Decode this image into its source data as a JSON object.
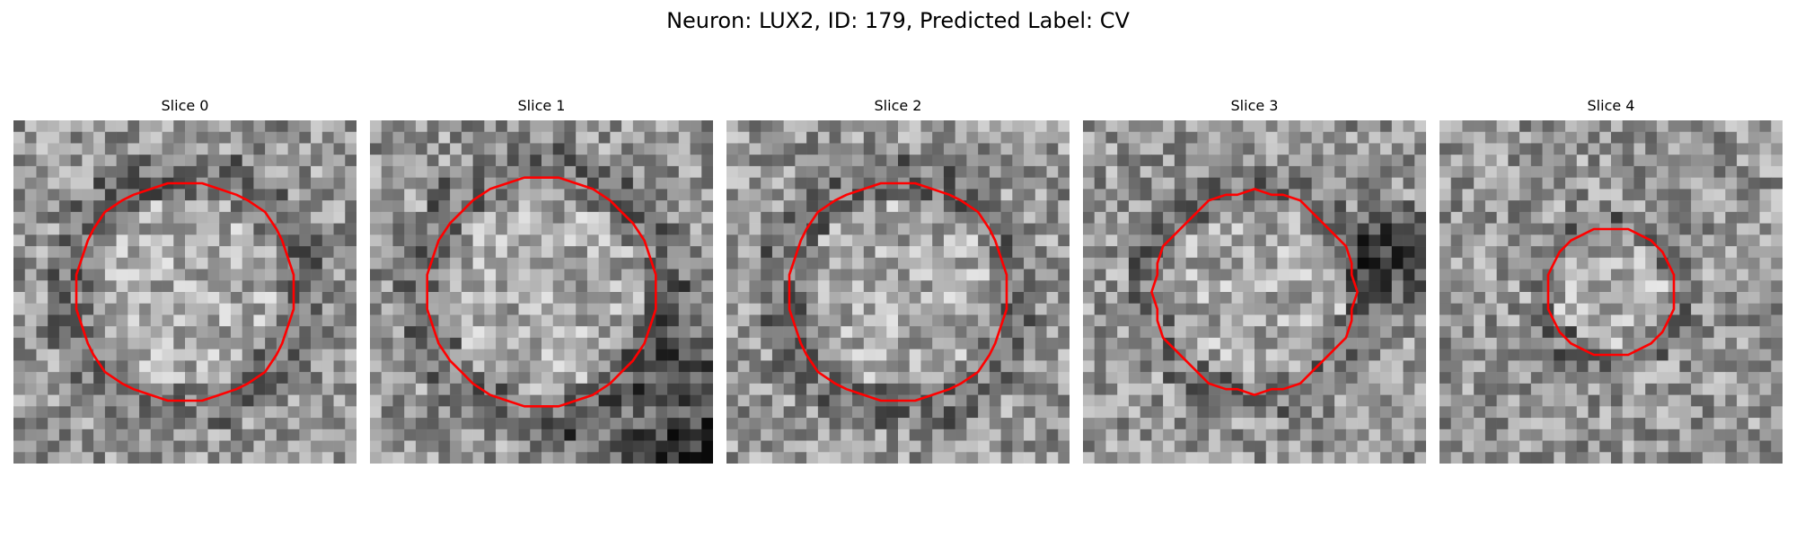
{
  "figure": {
    "title": "Neuron: LUX2, ID: 179, Predicted Label: CV"
  },
  "colors": {
    "background": "#ffffff",
    "contour": "#ff0000"
  },
  "panels": [
    {
      "title": "Slice 0",
      "contour_radius": 0.33,
      "seed": 11,
      "dark_corner": "none"
    },
    {
      "title": "Slice 1",
      "contour_radius": 0.34,
      "seed": 23,
      "dark_corner": "bottom-right"
    },
    {
      "title": "Slice 2",
      "contour_radius": 0.33,
      "seed": 37,
      "dark_corner": "none"
    },
    {
      "title": "Slice 3",
      "contour_radius": 0.3,
      "seed": 41,
      "dark_corner": "top-right"
    },
    {
      "title": "Slice 4",
      "contour_radius": 0.19,
      "seed": 53,
      "dark_corner": "none"
    }
  ]
}
